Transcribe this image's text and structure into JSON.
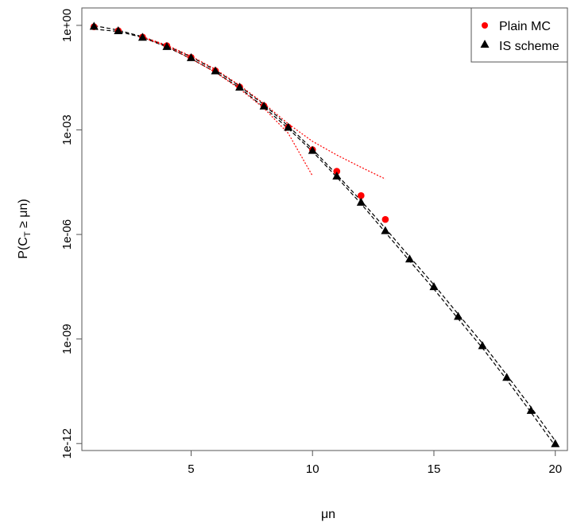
{
  "chart_data": {
    "type": "scatter",
    "xlabel": "μn",
    "ylabel_parts": [
      "P(C",
      "T",
      " ≥ μn)"
    ],
    "x_ticks": [
      5,
      10,
      15,
      20
    ],
    "y_ticks": [
      {
        "exp": 0,
        "label": "1e+00"
      },
      {
        "exp": -3,
        "label": "1e-03"
      },
      {
        "exp": -6,
        "label": "1e-06"
      },
      {
        "exp": -9,
        "label": "1e-09"
      },
      {
        "exp": -12,
        "label": "1e-12"
      }
    ],
    "x_range": [
      0.5,
      20.5
    ],
    "y_log10_range": [
      -12.2,
      0.5
    ],
    "y_scale": "log",
    "grid": false,
    "legend_position": "top-right",
    "series": [
      {
        "name": "Plain MC",
        "marker": "circle",
        "color": "#ff0000",
        "x": [
          1,
          2,
          3,
          4,
          5,
          6,
          7,
          8,
          9,
          10,
          11,
          12,
          13
        ],
        "y": [
          0.91,
          0.7,
          0.46,
          0.26,
          0.12,
          0.05,
          0.017,
          0.0049,
          0.0012,
          0.00027,
          6.5e-05,
          1.3e-05,
          2.7e-06
        ]
      },
      {
        "name": "IS scheme",
        "marker": "triangle",
        "color": "#000000",
        "x": [
          1,
          2,
          3,
          4,
          5,
          6,
          7,
          8,
          9,
          10,
          11,
          12,
          13,
          14,
          15,
          16,
          17,
          18,
          19,
          20
        ],
        "y": [
          0.95,
          0.71,
          0.46,
          0.25,
          0.12,
          0.05,
          0.017,
          0.0049,
          0.0012,
          0.00026,
          4.8e-05,
          8.5e-06,
          1.3e-06,
          2e-07,
          3.2e-08,
          4.5e-09,
          6.5e-10,
          8e-11,
          9e-12,
          1e-12
        ]
      }
    ],
    "reference_curves": [
      {
        "name": "upper-dashed",
        "style": "dashed",
        "color": "#000000",
        "x": [
          1,
          2,
          3,
          4,
          5,
          6,
          7,
          8,
          9,
          10,
          11,
          12,
          13,
          14,
          15,
          16,
          17,
          18,
          19,
          20
        ],
        "y": [
          0.98,
          0.73,
          0.47,
          0.26,
          0.125,
          0.052,
          0.018,
          0.0053,
          0.0013,
          0.00028,
          5.2e-05,
          9.3e-06,
          1.5e-06,
          2.3e-07,
          3.6e-08,
          5.2e-09,
          7.5e-10,
          9.3e-11,
          1.1e-11,
          1.2e-12
        ]
      },
      {
        "name": "lower-dashed",
        "style": "dashed",
        "color": "#000000",
        "x": [
          1,
          2,
          3,
          4,
          5,
          6,
          7,
          8,
          9,
          10,
          11,
          12,
          13,
          14,
          15,
          16,
          17,
          18,
          19,
          20
        ],
        "y": [
          0.78,
          0.67,
          0.45,
          0.24,
          0.11,
          0.046,
          0.016,
          0.0045,
          0.0011,
          0.00024,
          4.4e-05,
          7.6e-06,
          1.15e-06,
          1.75e-07,
          2.7e-08,
          3.8e-09,
          5.5e-10,
          6.8e-11,
          7.8e-12,
          8.5e-13
        ]
      },
      {
        "name": "mc-upper-dotted",
        "style": "dotted",
        "color": "#ff0000",
        "x": [
          3,
          4,
          5,
          6,
          7,
          8,
          9,
          10,
          11,
          12,
          13
        ],
        "y": [
          0.47,
          0.27,
          0.13,
          0.055,
          0.019,
          0.0057,
          0.0015,
          0.00047,
          0.00019,
          8.5e-05,
          3.9e-05
        ]
      },
      {
        "name": "mc-lower-dotted",
        "style": "dotted",
        "color": "#ff0000",
        "x": [
          3,
          4,
          5,
          6,
          7,
          8,
          9,
          10
        ],
        "y": [
          0.45,
          0.25,
          0.11,
          0.045,
          0.015,
          0.0042,
          0.0008,
          4.8e-05
        ]
      }
    ]
  }
}
